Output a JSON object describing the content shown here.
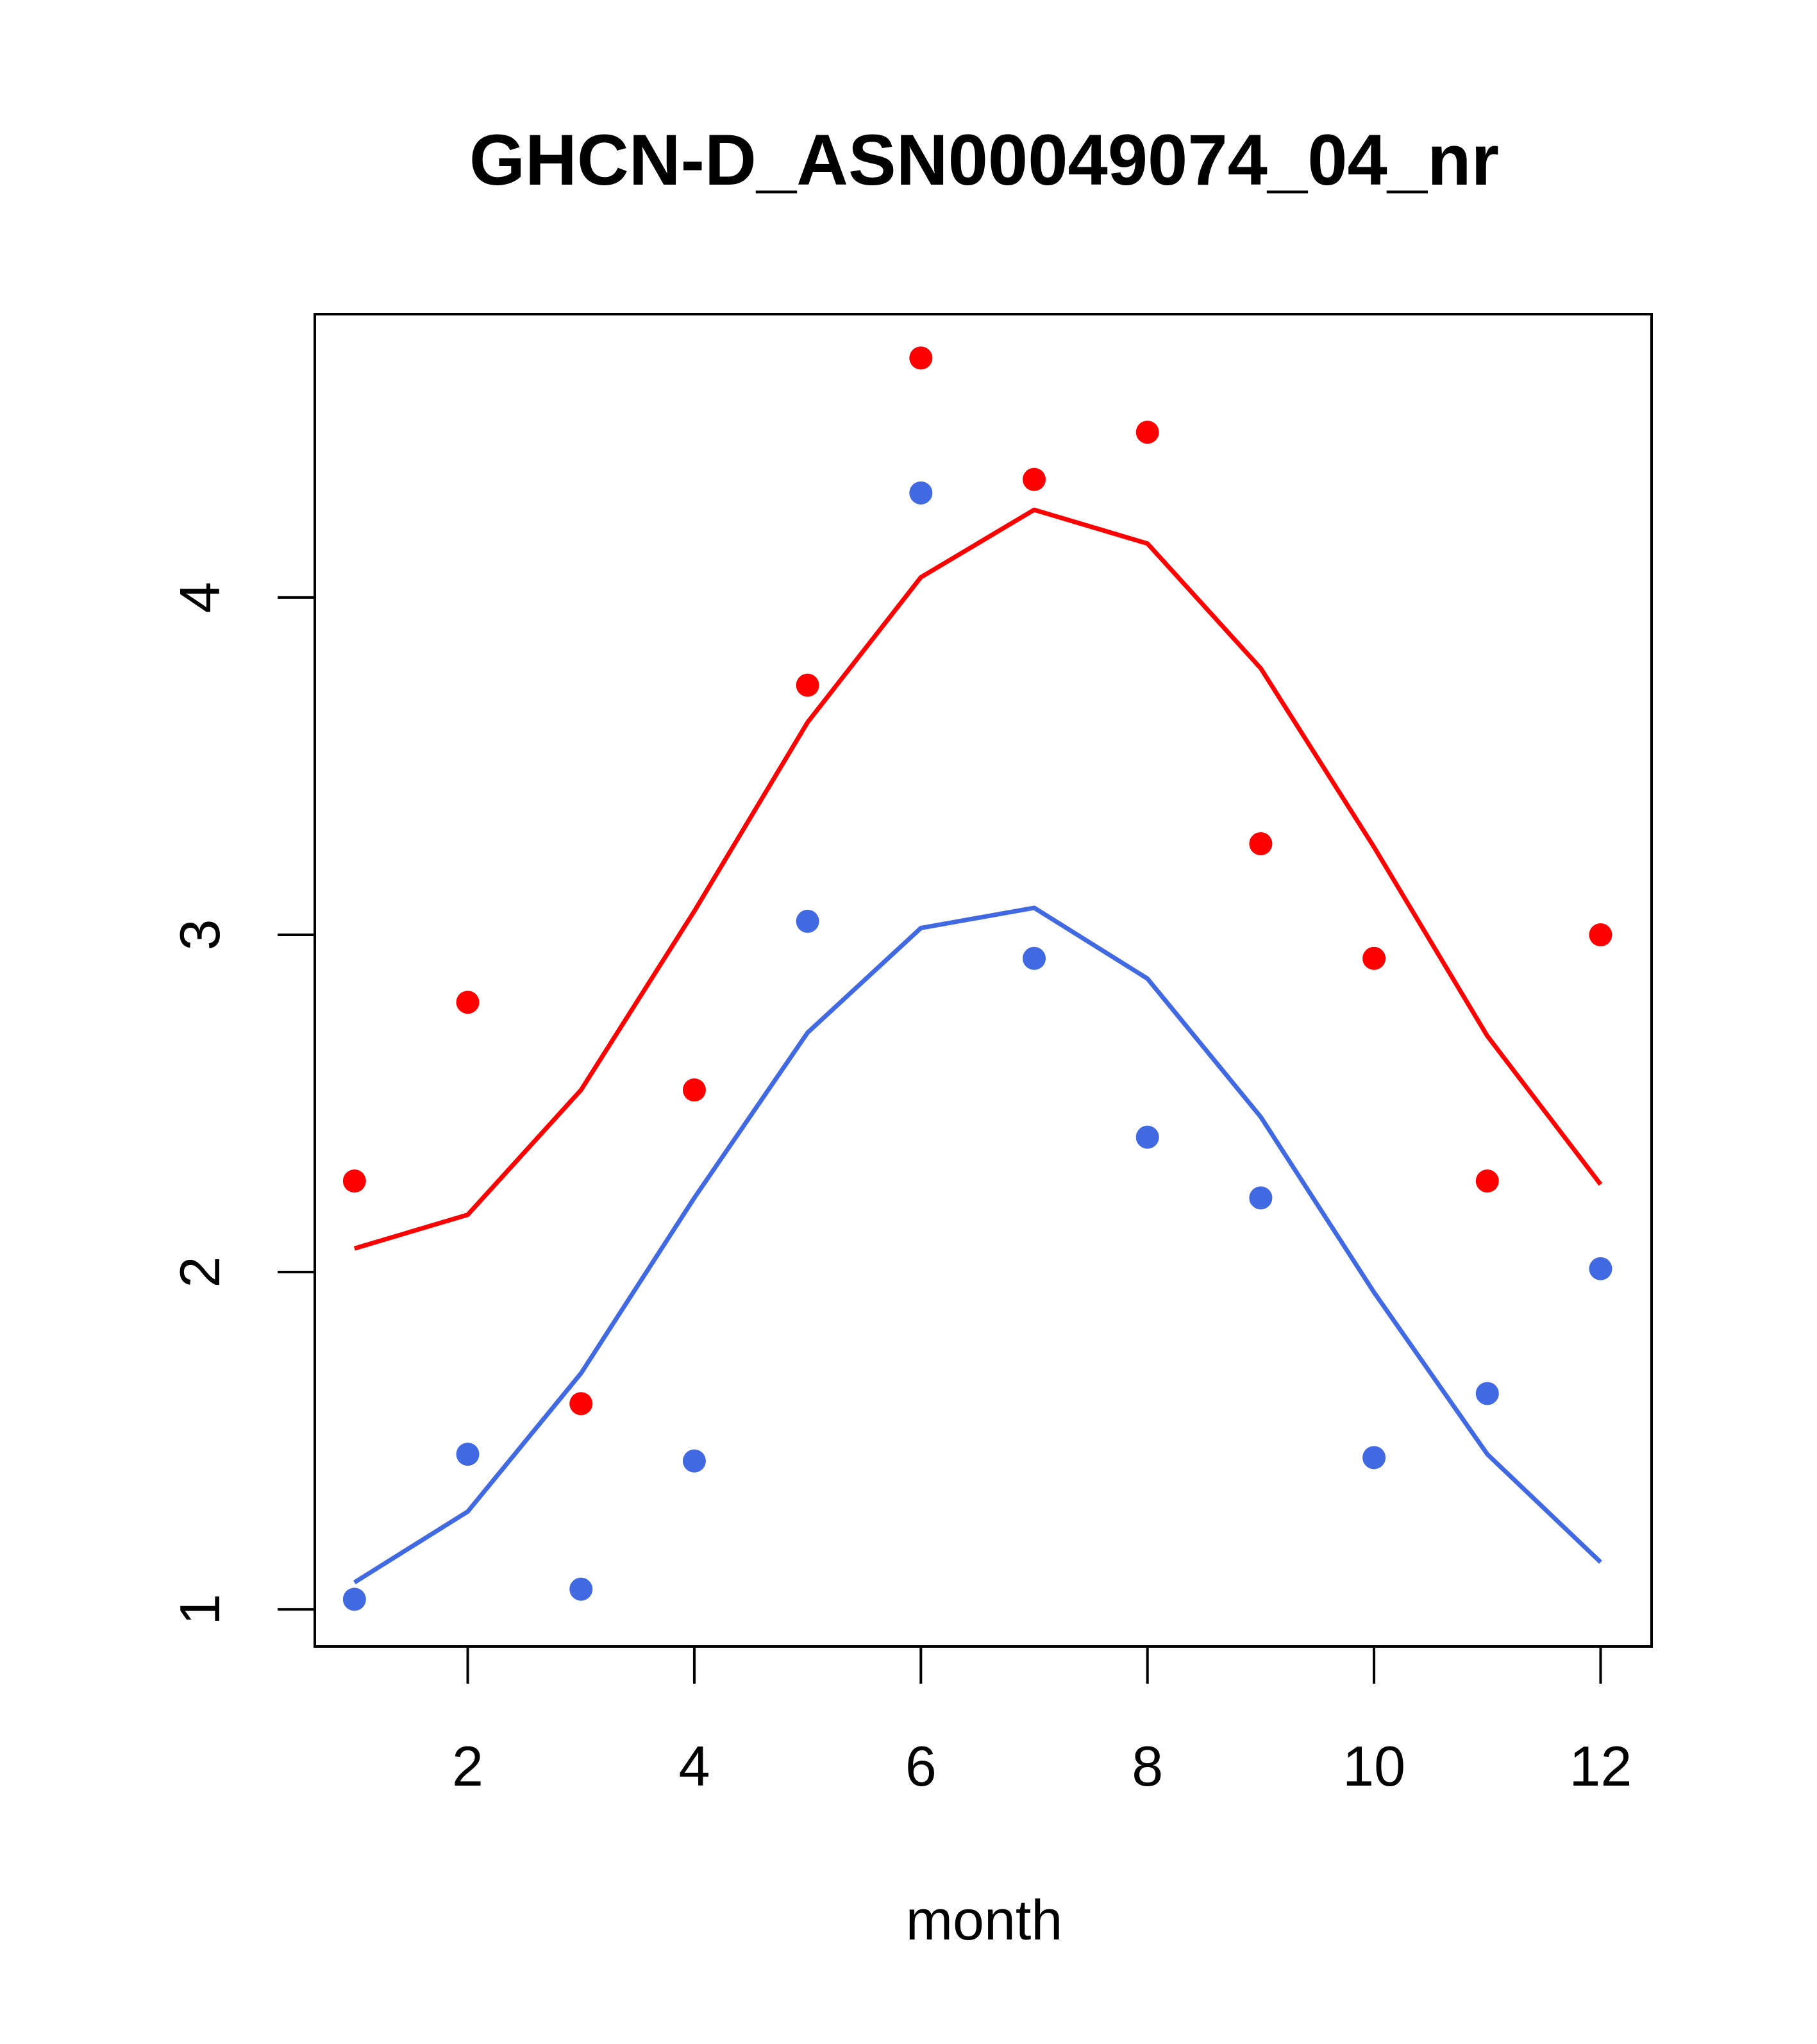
{
  "chart_data": {
    "type": "scatter",
    "title": "GHCN-D_ASN00049074_04_nr",
    "xlabel": "month",
    "ylabel": "",
    "xlim": [
      0.65,
      12.45
    ],
    "ylim": [
      0.89,
      4.84
    ],
    "x_ticks": [
      2,
      4,
      6,
      8,
      10,
      12
    ],
    "y_ticks": [
      1,
      2,
      3,
      4
    ],
    "grid": false,
    "legend": "none",
    "series": [
      {
        "color": "#ff0000",
        "x": [
          1,
          2,
          3,
          4,
          5,
          6,
          7,
          8,
          9,
          10,
          11,
          12
        ],
        "points": [
          2.27,
          2.8,
          1.61,
          2.54,
          3.74,
          4.71,
          4.35,
          4.49,
          3.27,
          2.93,
          2.27,
          3.0
        ],
        "fit": [
          2.07,
          2.17,
          2.54,
          3.07,
          3.63,
          4.06,
          4.26,
          4.16,
          3.79,
          3.26,
          2.7,
          2.26
        ]
      },
      {
        "color": "#4169e1",
        "x": [
          1,
          2,
          3,
          4,
          5,
          6,
          7,
          8,
          9,
          10,
          11,
          12
        ],
        "points": [
          1.03,
          1.46,
          1.06,
          1.44,
          3.04,
          4.31,
          2.93,
          2.4,
          2.22,
          1.45,
          1.64,
          2.01
        ],
        "fit": [
          1.08,
          1.29,
          1.7,
          2.22,
          2.71,
          3.02,
          3.08,
          2.87,
          2.46,
          1.94,
          1.46,
          1.14
        ]
      }
    ]
  }
}
